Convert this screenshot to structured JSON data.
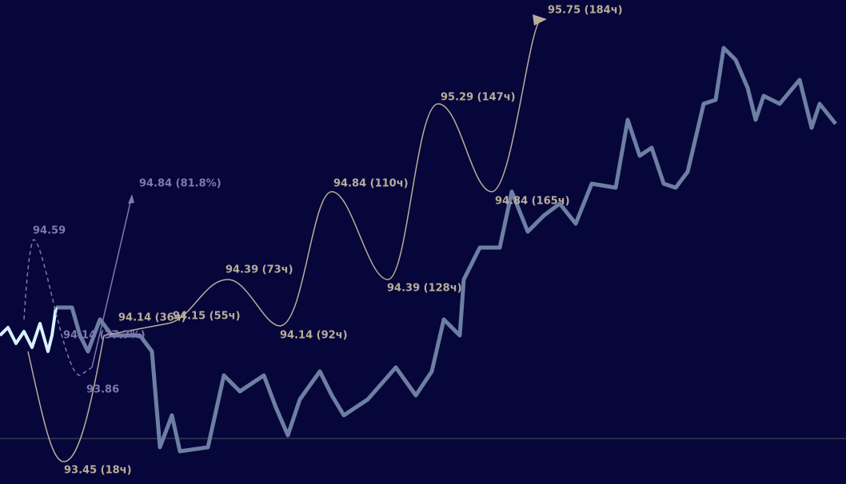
{
  "annotations": {
    "forecast": [
      "95.75 (184ч)",
      "95.29 (147ч)",
      "94.84 (110ч)",
      "94.84 (165ч)",
      "94.39 (73ч)",
      "94.39 (128ч)",
      "94.14 (92ч)",
      "94.15 (55ч)",
      "94.14 (36ч)",
      "93.45 (18ч)"
    ],
    "scenario": [
      "94.84 (81.8%)",
      "94.59",
      "94.14 (37.7%)",
      "93.86"
    ]
  }
}
